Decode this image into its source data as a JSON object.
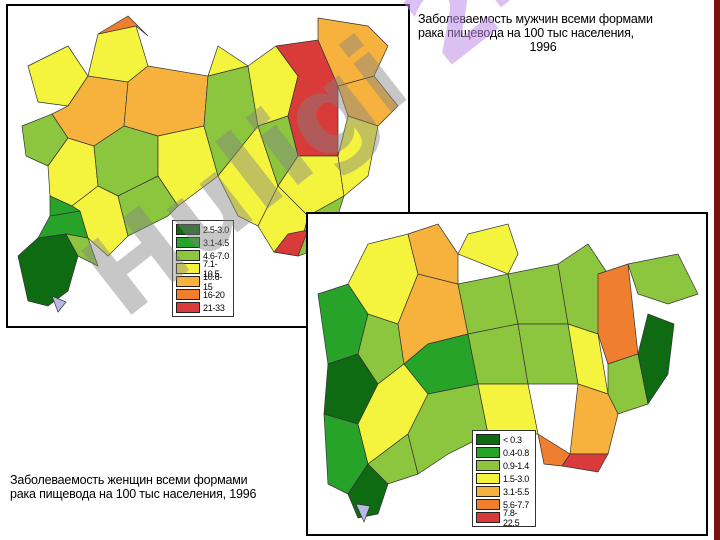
{
  "maps": {
    "male": {
      "title_line1": "Заболеваемость мужчин всеми формами",
      "title_line2": "рака пищевода на 100 тыс населения,",
      "year": "1996",
      "legend": [
        {
          "label": "2.5-3.0",
          "color": "#0e6b12"
        },
        {
          "label": "3.1-4.5",
          "color": "#27a32a"
        },
        {
          "label": "4.6-7.0",
          "color": "#8cc63e"
        },
        {
          "label": "7.1-10.5",
          "color": "#f4f43e"
        },
        {
          "label": "10.6-15",
          "color": "#f6b23c"
        },
        {
          "label": "16-20",
          "color": "#ef7f2e"
        },
        {
          "label": "21-33",
          "color": "#d93a3a"
        }
      ]
    },
    "female": {
      "title_line1": "Заболеваемость женщин всеми формами",
      "title_line2": "рака пищевода на 100 тыс населения, 1996",
      "legend": [
        {
          "label": "< 0.3",
          "color": "#0e6b12"
        },
        {
          "label": "0.4-0.8",
          "color": "#27a32a"
        },
        {
          "label": "0.9-1.4",
          "color": "#8cc63e"
        },
        {
          "label": "1.5-3.0",
          "color": "#f4f43e"
        },
        {
          "label": "3.1-5.5",
          "color": "#f6b23c"
        },
        {
          "label": "5.6-7.7",
          "color": "#ef7f2e"
        },
        {
          "label": "7.8-22.5",
          "color": "#d93a3a"
        }
      ]
    }
  },
  "watermark": {
    "prefix": "Huligi",
    "accent": "24"
  },
  "accent_bar_color": "#7a1212"
}
